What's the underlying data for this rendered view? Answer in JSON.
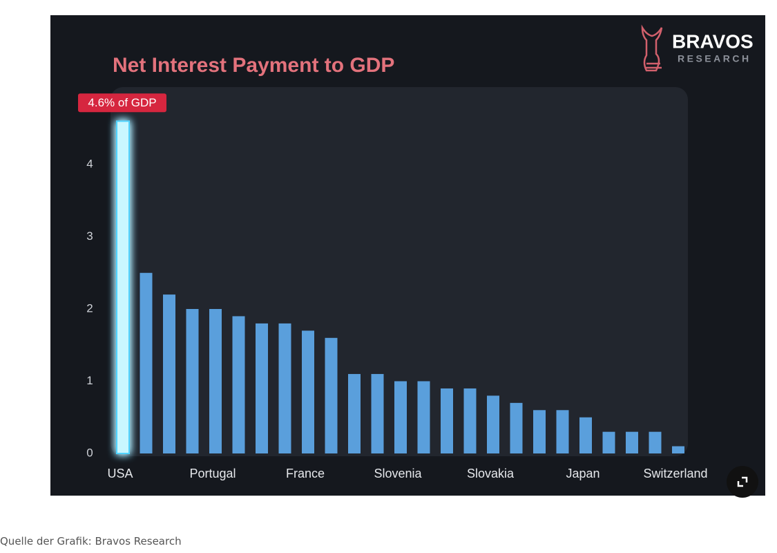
{
  "chart_data": {
    "type": "bar",
    "title": "Net Interest Payment to GDP",
    "brand": "BRAVOS",
    "brand_sub": "RESEARCH",
    "annotation": "4.6% of GDP",
    "categories": [
      "USA",
      null,
      null,
      null,
      "Portugal",
      null,
      null,
      null,
      "France",
      null,
      null,
      null,
      "Slovenia",
      null,
      null,
      null,
      "Slovakia",
      null,
      null,
      null,
      "Japan",
      null,
      null,
      null,
      "Switzerland"
    ],
    "values": [
      4.6,
      2.5,
      2.2,
      2.0,
      2.0,
      1.9,
      1.8,
      1.8,
      1.7,
      1.6,
      1.1,
      1.1,
      1.0,
      1.0,
      0.9,
      0.9,
      0.8,
      0.7,
      0.6,
      0.6,
      0.5,
      0.3,
      0.3,
      0.3,
      0.1
    ],
    "color": "#5a9fdc",
    "highlight_color": "#c9f7ff",
    "ylim": [
      0,
      5
    ],
    "yticks": [
      0,
      1,
      2,
      3,
      4
    ],
    "grid": false
  },
  "caption": "Quelle der Grafik: Bravos Research"
}
